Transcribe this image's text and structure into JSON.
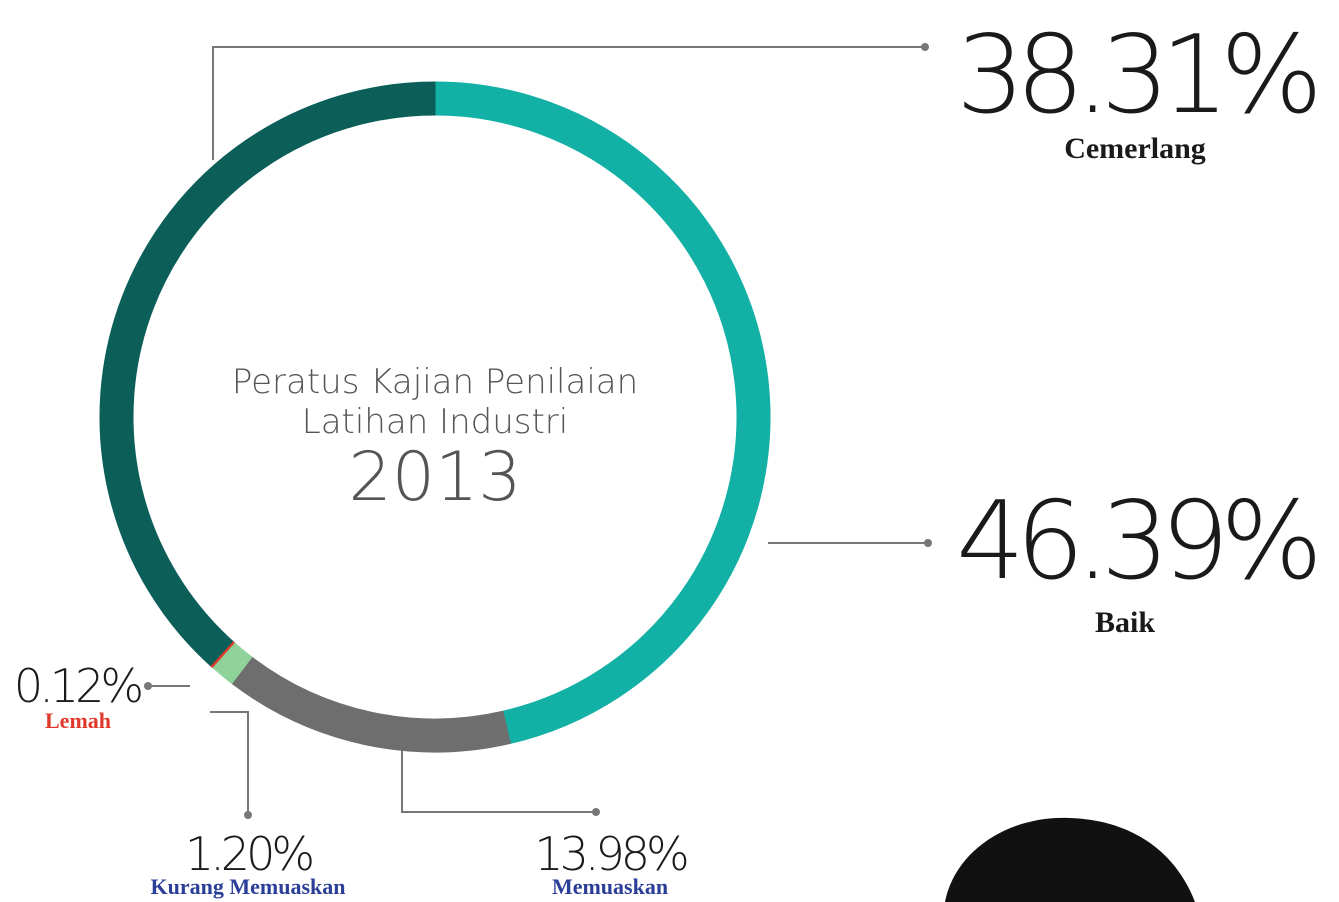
{
  "chart_data": {
    "type": "pie",
    "donut": true,
    "center_lines": [
      "Peratus Kajian Penilaian",
      "Latihan Industri",
      "2013"
    ],
    "categories": [
      "Baik",
      "Memuaskan",
      "Kurang Memuaskan",
      "Lemah",
      "Cemerlang"
    ],
    "values": [
      46.39,
      13.98,
      1.2,
      0.12,
      38.31
    ],
    "value_labels": [
      "46.39%",
      "13.98%",
      "1.20%",
      "0.12%",
      "38.31%"
    ],
    "colors": [
      "#13b0a5",
      "#6e6e6e",
      "#8fd39b",
      "#e0392b",
      "#0c5e59"
    ],
    "label_colors": [
      "#1a1a1a",
      "#2b3f98",
      "#2b3f98",
      "#e0392b",
      "#1a1a1a"
    ]
  }
}
